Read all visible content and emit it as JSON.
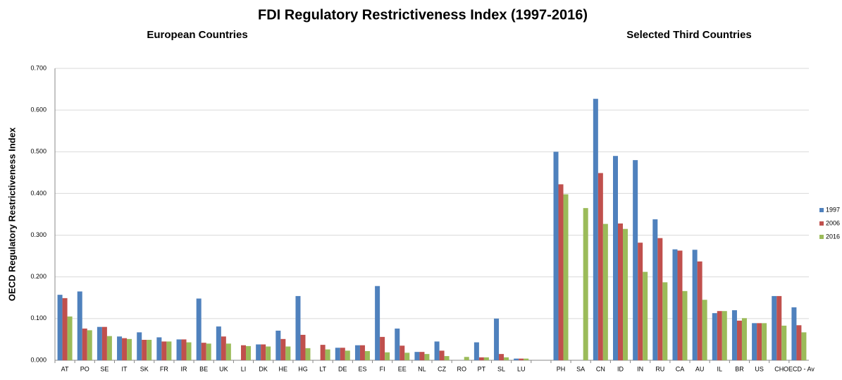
{
  "chart_data": {
    "type": "bar",
    "title": "FDI Regulatory Restrictiveness Index (1997-2016)",
    "subtitles": [
      "European Countries",
      "Selected Third Countries"
    ],
    "y_label": "OECD Regulatory Restrictiveness Index",
    "categories": [
      "AT",
      "PO",
      "SE",
      "IT",
      "SK",
      "FR",
      "IR",
      "BE",
      "UK",
      "LI",
      "DK",
      "HE",
      "HG",
      "LT",
      "DE",
      "ES",
      "FI",
      "EE",
      "NL",
      "CZ",
      "RO",
      "PT",
      "SL",
      "LU",
      null,
      "PH",
      "SA",
      "CN",
      "ID",
      "IN",
      "RU",
      "CA",
      "AU",
      "IL",
      "BR",
      "US",
      "CH",
      "OECD - Av"
    ],
    "series": [
      {
        "name": "1997",
        "color": "#4f81bd",
        "values": [
          0.157,
          0.165,
          0.08,
          0.057,
          0.067,
          0.055,
          0.05,
          0.148,
          0.081,
          null,
          0.038,
          0.071,
          0.154,
          null,
          0.03,
          0.036,
          0.178,
          0.076,
          0.02,
          0.045,
          null,
          0.043,
          0.1,
          0.004,
          null,
          0.5,
          null,
          0.627,
          0.49,
          0.48,
          0.338,
          0.266,
          0.265,
          0.113,
          0.12,
          0.089,
          0.154,
          0.127
        ]
      },
      {
        "name": "2006",
        "color": "#c0504d",
        "values": [
          0.149,
          0.076,
          0.08,
          0.053,
          0.049,
          0.045,
          0.05,
          0.042,
          0.057,
          0.036,
          0.038,
          0.051,
          0.061,
          0.037,
          0.03,
          0.036,
          0.056,
          0.035,
          0.02,
          0.023,
          null,
          0.007,
          0.015,
          0.004,
          null,
          0.422,
          null,
          0.449,
          0.328,
          0.282,
          0.293,
          0.263,
          0.237,
          0.118,
          0.095,
          0.089,
          0.154,
          0.084
        ]
      },
      {
        "name": "2016",
        "color": "#9bbb59",
        "values": [
          0.105,
          0.072,
          0.058,
          0.051,
          0.049,
          0.045,
          0.043,
          0.04,
          0.04,
          0.034,
          0.033,
          0.033,
          0.029,
          0.026,
          0.023,
          0.022,
          0.019,
          0.018,
          0.015,
          0.01,
          0.008,
          0.007,
          0.007,
          0.004,
          null,
          0.398,
          0.365,
          0.327,
          0.315,
          0.212,
          0.187,
          0.166,
          0.145,
          0.118,
          0.101,
          0.089,
          0.083,
          0.067
        ]
      }
    ],
    "ylim": [
      0,
      0.7
    ],
    "yticks": [
      {
        "value": 0,
        "label": "0.000"
      },
      {
        "value": 0.1,
        "label": "0.100"
      },
      {
        "value": 0.2,
        "label": "0.200"
      },
      {
        "value": 0.3,
        "label": "0.300"
      },
      {
        "value": 0.4,
        "label": "0.400"
      },
      {
        "value": 0.5,
        "label": "0.500"
      },
      {
        "value": 0.6,
        "label": "0.600"
      },
      {
        "value": 0.7,
        "label": "0.700"
      }
    ],
    "grid": true,
    "legend": "right"
  }
}
